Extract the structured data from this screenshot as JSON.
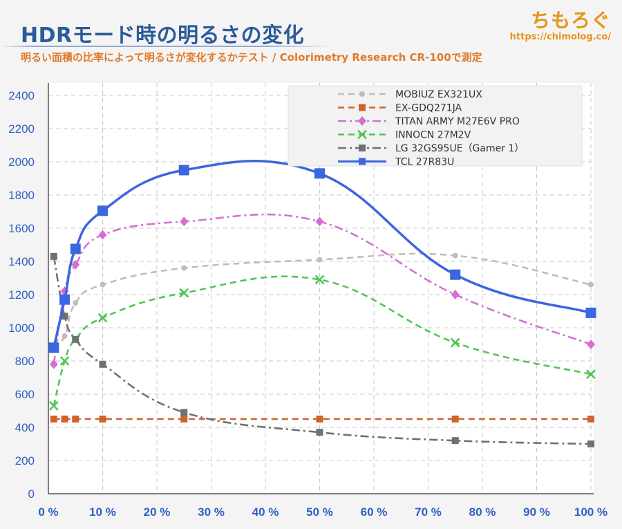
{
  "header": {
    "title": "HDRモード時の明るさの変化",
    "subtitle": "明るい面積の比率によって明るさが変化するかテスト / Colorimetry Research CR-100で測定"
  },
  "brand": {
    "name": "ちもろぐ",
    "url": "https://chimolog.co/"
  },
  "chart_data": {
    "type": "line",
    "title": "HDRモード時の明るさの変化",
    "subtitle": "明るい面積の比率によって明るさが変化するかテスト / Colorimetry Research CR-100で測定",
    "x_ticks": [
      0,
      10,
      20,
      30,
      40,
      50,
      60,
      70,
      80,
      90,
      100
    ],
    "x_tick_suffix": " %",
    "xlim": [
      0,
      100
    ],
    "y_ticks": [
      0,
      200,
      400,
      600,
      800,
      1000,
      1200,
      1400,
      1600,
      1800,
      2000,
      2200,
      2400
    ],
    "ylim": [
      0,
      2400
    ],
    "grid": {
      "horizontal": "dashed",
      "vertical": "dashed"
    },
    "legend_position": "top-right",
    "series": [
      {
        "name": "MOBIUZ EX321UX",
        "color": "#bdbdbd",
        "dash": "dash",
        "marker": "dot",
        "x": [
          1,
          3,
          5,
          10,
          25,
          50,
          75,
          100
        ],
        "y": [
          880,
          950,
          1150,
          1260,
          1360,
          1410,
          1435,
          1260
        ]
      },
      {
        "name": "EX-GDQ271JA",
        "color": "#d0632a",
        "dash": "dash",
        "marker": "square",
        "x": [
          1,
          3,
          5,
          10,
          25,
          50,
          75,
          100
        ],
        "y": [
          450,
          450,
          450,
          450,
          450,
          450,
          450,
          450
        ]
      },
      {
        "name": "TITAN ARMY M27E6V PRO",
        "color": "#d66fd0",
        "dash": "dashdot",
        "marker": "diamond",
        "x": [
          1,
          3,
          5,
          10,
          25,
          50,
          75,
          100
        ],
        "y": [
          780,
          1220,
          1380,
          1560,
          1640,
          1640,
          1200,
          900
        ]
      },
      {
        "name": "INNOCN 27M2V",
        "color": "#4fc650",
        "dash": "dash",
        "marker": "x",
        "x": [
          1,
          3,
          5,
          10,
          25,
          50,
          75,
          100
        ],
        "y": [
          530,
          800,
          930,
          1060,
          1210,
          1290,
          910,
          720
        ]
      },
      {
        "name": "LG 32GS95UE（Gamer 1）",
        "color": "#707070",
        "dash": "dashdot",
        "marker": "square",
        "x": [
          1,
          3,
          5,
          10,
          25,
          50,
          75,
          100
        ],
        "y": [
          1430,
          1070,
          930,
          780,
          490,
          370,
          320,
          300
        ]
      },
      {
        "name": "TCL 27R83U",
        "color": "#3b66e0",
        "dash": "solid",
        "marker": "bigsquare",
        "x": [
          1,
          3,
          5,
          10,
          25,
          50,
          75,
          100
        ],
        "y": [
          880,
          1170,
          1475,
          1705,
          1950,
          1930,
          1320,
          1090
        ]
      }
    ]
  }
}
